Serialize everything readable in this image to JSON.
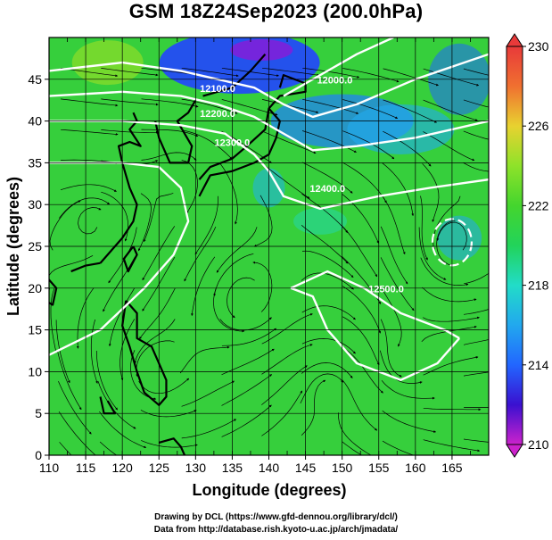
{
  "title": "GSM 18Z24Sep2023 (200.0hPa)",
  "map": {
    "xlabel": "Longitude (degrees)",
    "ylabel": "Latitude  (degrees)",
    "xlim": [
      110,
      170
    ],
    "ylim": [
      0,
      50
    ],
    "xticks": [
      110,
      115,
      120,
      125,
      130,
      135,
      140,
      145,
      150,
      155,
      160,
      165
    ],
    "yticks": [
      0,
      5,
      10,
      15,
      20,
      25,
      30,
      35,
      40,
      45
    ],
    "grid": true,
    "overlay": "streamlines",
    "contour_labels": [
      {
        "text": "12100.0",
        "lon": 133,
        "lat": 43.5
      },
      {
        "text": "12200.0",
        "lon": 133,
        "lat": 40.5
      },
      {
        "text": "12300.0",
        "lon": 135,
        "lat": 37
      },
      {
        "text": "12000.0",
        "lon": 149,
        "lat": 44.5
      },
      {
        "text": "12400.0",
        "lon": 148,
        "lat": 31.5
      },
      {
        "text": "12500.0",
        "lon": 156,
        "lat": 19.5
      }
    ]
  },
  "colorbar": {
    "min": 210,
    "max": 230,
    "tick_labels": [
      "230",
      "226",
      "222",
      "218",
      "214",
      "210"
    ],
    "colors": [
      "#cc22cc",
      "#3a10d0",
      "#2266ff",
      "#22a8ee",
      "#22dcc8",
      "#22d35a",
      "#44d52e",
      "#8ee22a",
      "#e8d230",
      "#f07030",
      "#e83a3a"
    ]
  },
  "credits": {
    "line1": "Drawing by DCL (https://www.gfd-dennou.org/library/dcl/)",
    "line2": "Data from http://database.rish.kyoto-u.ac.jp/arch/jmadata/"
  }
}
